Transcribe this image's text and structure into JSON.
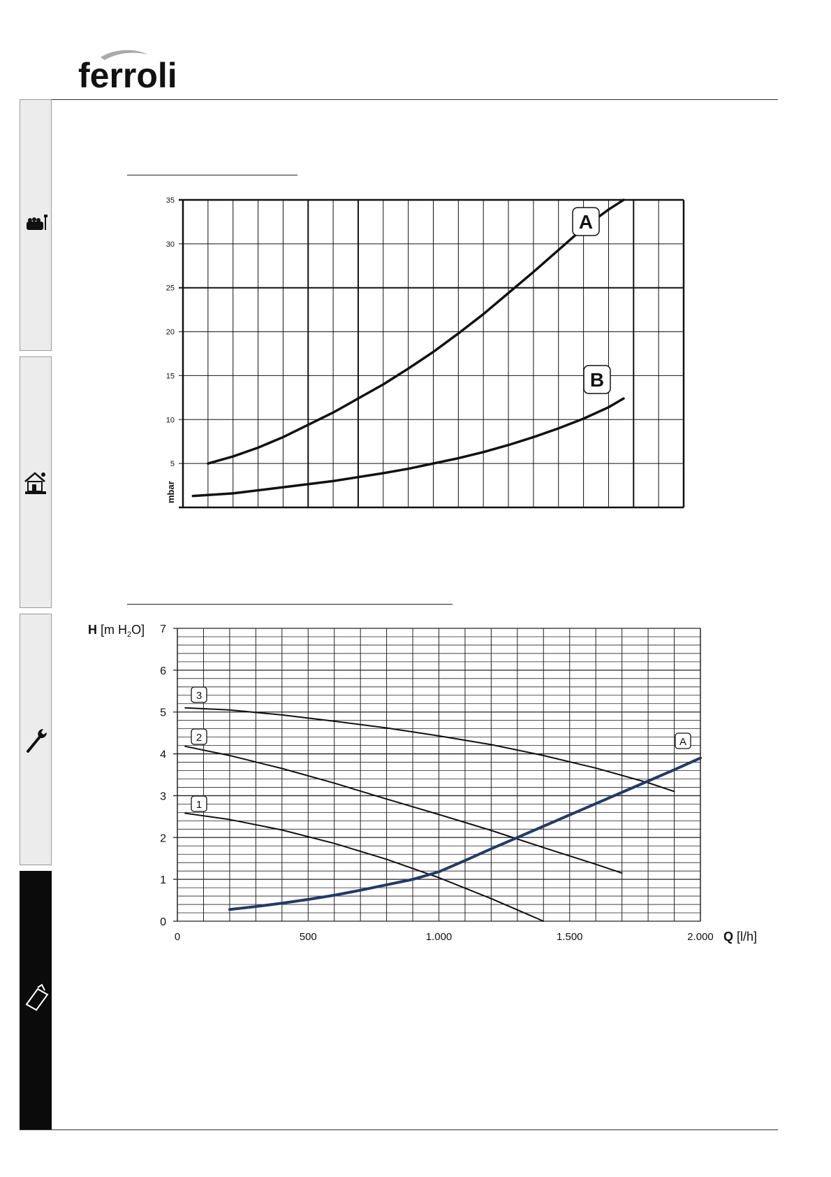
{
  "header": {
    "logo_text": "ferroli"
  },
  "side_tabs": [
    {
      "icon": "user-sofa-icon",
      "active": false
    },
    {
      "icon": "installer-house-icon",
      "active": false
    },
    {
      "icon": "wrench-icon",
      "active": false
    },
    {
      "icon": "clipboard-icon",
      "active": true
    }
  ],
  "chart_data": [
    {
      "type": "line",
      "ylabel": "mbar",
      "xlabel": "",
      "ylim": [
        0,
        35
      ],
      "y_ticks": [
        "35",
        "30",
        "25",
        "20",
        "15",
        "10",
        "5"
      ],
      "grid": true,
      "series": [
        {
          "name": "A",
          "x": [
            0.05,
            0.1,
            0.15,
            0.2,
            0.25,
            0.3,
            0.35,
            0.4,
            0.45,
            0.5,
            0.55,
            0.6,
            0.65,
            0.7,
            0.75,
            0.8,
            0.85,
            0.88
          ],
          "values": [
            5.0,
            5.8,
            6.8,
            8.0,
            9.4,
            10.8,
            12.4,
            14.0,
            15.8,
            17.7,
            19.8,
            22.0,
            24.4,
            26.8,
            29.3,
            31.8,
            33.9,
            35.0
          ]
        },
        {
          "name": "B",
          "x": [
            0.02,
            0.1,
            0.2,
            0.3,
            0.4,
            0.45,
            0.5,
            0.55,
            0.6,
            0.65,
            0.7,
            0.75,
            0.8,
            0.85,
            0.88
          ],
          "values": [
            1.3,
            1.6,
            2.3,
            3.0,
            3.9,
            4.4,
            5.0,
            5.6,
            6.3,
            7.1,
            8.0,
            9.0,
            10.1,
            11.4,
            12.4
          ]
        }
      ]
    },
    {
      "type": "line",
      "ylabel_bold": "H",
      "ylabel_rest": "[m H",
      "ylabel_sub": "2",
      "ylabel_end": "O]",
      "xlabel_bold": "Q",
      "xlabel_rest": "[l/h]",
      "xlim": [
        0,
        2000
      ],
      "ylim": [
        0,
        7
      ],
      "x_ticks": [
        {
          "value": 0,
          "label": "0"
        },
        {
          "value": 500,
          "label": "500"
        },
        {
          "value": 1000,
          "label": "1.000"
        },
        {
          "value": 1500,
          "label": "1.500"
        },
        {
          "value": 2000,
          "label": "2.000"
        }
      ],
      "y_ticks": [
        "0",
        "1",
        "2",
        "3",
        "4",
        "5",
        "6",
        "7"
      ],
      "grid": true,
      "series": [
        {
          "name": "3",
          "x": [
            30,
            200,
            400,
            600,
            800,
            1000,
            1200,
            1400,
            1600,
            1800,
            1900
          ],
          "values": [
            5.1,
            5.05,
            4.93,
            4.78,
            4.62,
            4.43,
            4.22,
            3.96,
            3.66,
            3.31,
            3.1
          ]
        },
        {
          "name": "2",
          "x": [
            30,
            200,
            400,
            600,
            800,
            1000,
            1200,
            1400,
            1600,
            1700
          ],
          "values": [
            4.18,
            3.96,
            3.65,
            3.3,
            2.92,
            2.55,
            2.17,
            1.76,
            1.36,
            1.15
          ]
        },
        {
          "name": "1",
          "x": [
            30,
            200,
            400,
            600,
            800,
            1000,
            1200,
            1400
          ],
          "values": [
            2.58,
            2.43,
            2.18,
            1.86,
            1.48,
            1.04,
            0.54,
            0.0
          ]
        },
        {
          "name": "A",
          "x": [
            200,
            300,
            400,
            500,
            600,
            700,
            800,
            900,
            1000,
            1100,
            1200,
            1300,
            1400,
            1500,
            1600,
            1700,
            1800,
            1900,
            2000
          ],
          "values": [
            0.28,
            0.35,
            0.43,
            0.52,
            0.62,
            0.74,
            0.87,
            1.0,
            1.18,
            1.45,
            1.73,
            2.0,
            2.27,
            2.54,
            2.81,
            3.08,
            3.35,
            3.62,
            3.9
          ]
        }
      ]
    }
  ]
}
